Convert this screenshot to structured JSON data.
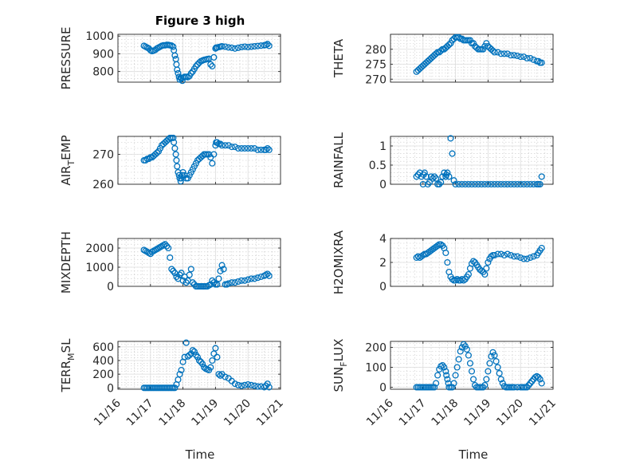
{
  "figure": {
    "title": "Figure 3 high"
  },
  "chart_data": [
    {
      "id": "pressure",
      "type": "scatter",
      "ylabel": "PRESSURE",
      "xlim": [
        16,
        21
      ],
      "ylim": [
        740,
        1010
      ],
      "yticks": [
        800,
        900,
        1000
      ],
      "x": [
        16.8,
        16.85,
        16.9,
        16.95,
        17.0,
        17.05,
        17.1,
        17.15,
        17.2,
        17.25,
        17.3,
        17.35,
        17.4,
        17.45,
        17.5,
        17.55,
        17.6,
        17.65,
        17.7,
        17.72,
        17.75,
        17.78,
        17.8,
        17.82,
        17.85,
        17.88,
        17.9,
        17.93,
        17.95,
        17.98,
        18.0,
        18.05,
        18.1,
        18.15,
        18.2,
        18.25,
        18.3,
        18.35,
        18.4,
        18.45,
        18.5,
        18.55,
        18.6,
        18.65,
        18.7,
        18.75,
        18.8,
        18.85,
        18.9,
        18.95,
        19.0,
        19.02,
        19.05,
        19.1,
        19.15,
        19.2,
        19.3,
        19.4,
        19.5,
        19.6,
        19.7,
        19.8,
        19.9,
        20.0,
        20.1,
        20.2,
        20.3,
        20.4,
        20.5,
        20.55,
        20.6,
        20.65
      ],
      "y": [
        945,
        940,
        935,
        930,
        920,
        915,
        918,
        922,
        930,
        935,
        940,
        945,
        948,
        948,
        950,
        950,
        948,
        946,
        940,
        920,
        890,
        870,
        840,
        810,
        790,
        770,
        755,
        765,
        760,
        748,
        765,
        770,
        770,
        768,
        775,
        790,
        800,
        815,
        830,
        840,
        850,
        858,
        862,
        866,
        868,
        870,
        872,
        840,
        830,
        880,
        930,
        935,
        935,
        938,
        940,
        942,
        940,
        936,
        934,
        930,
        934,
        938,
        940,
        938,
        940,
        942,
        944,
        946,
        948,
        950,
        955,
        945
      ]
    },
    {
      "id": "theta",
      "type": "scatter",
      "ylabel": "THETA",
      "xlim": [
        16,
        21
      ],
      "ylim": [
        269,
        285
      ],
      "yticks": [
        270,
        275,
        280
      ],
      "x": [
        16.8,
        16.85,
        16.9,
        16.95,
        17.0,
        17.05,
        17.1,
        17.15,
        17.2,
        17.25,
        17.3,
        17.35,
        17.4,
        17.45,
        17.5,
        17.55,
        17.6,
        17.65,
        17.7,
        17.75,
        17.8,
        17.85,
        17.9,
        17.95,
        18.0,
        18.05,
        18.1,
        18.15,
        18.2,
        18.25,
        18.3,
        18.35,
        18.4,
        18.45,
        18.5,
        18.55,
        18.6,
        18.65,
        18.7,
        18.75,
        18.8,
        18.85,
        18.9,
        18.95,
        19.0,
        19.05,
        19.1,
        19.15,
        19.2,
        19.3,
        19.4,
        19.5,
        19.6,
        19.7,
        19.8,
        19.9,
        20.0,
        20.1,
        20.2,
        20.3,
        20.4,
        20.5,
        20.55,
        20.6,
        20.65
      ],
      "y": [
        272.5,
        273,
        273.5,
        274,
        274.5,
        275,
        275.5,
        276,
        276.5,
        277,
        277.5,
        278,
        278.5,
        279,
        279,
        279.5,
        280,
        280,
        280.5,
        281,
        281.5,
        282,
        283,
        283.5,
        284,
        284,
        284,
        283.5,
        283.5,
        283,
        283,
        283,
        283,
        283,
        282,
        282,
        281,
        280.5,
        280,
        280,
        280,
        280,
        281,
        282,
        281,
        280.5,
        280,
        279.5,
        279,
        279,
        278.5,
        278.5,
        278.5,
        278,
        278,
        277.8,
        277.5,
        277.5,
        277,
        277,
        276.5,
        276,
        276,
        275.5,
        275.5
      ]
    },
    {
      "id": "air_temp",
      "type": "scatter",
      "ylabel": "AIR_TEMP",
      "xlim": [
        16,
        21
      ],
      "ylim": [
        260,
        276
      ],
      "yticks": [
        260,
        270
      ],
      "x": [
        16.8,
        16.85,
        16.9,
        16.95,
        17.0,
        17.05,
        17.1,
        17.15,
        17.2,
        17.25,
        17.3,
        17.35,
        17.4,
        17.45,
        17.5,
        17.55,
        17.6,
        17.65,
        17.7,
        17.72,
        17.75,
        17.78,
        17.8,
        17.82,
        17.85,
        17.88,
        17.9,
        17.93,
        17.95,
        17.98,
        18.0,
        18.05,
        18.1,
        18.15,
        18.2,
        18.25,
        18.3,
        18.35,
        18.4,
        18.45,
        18.5,
        18.55,
        18.6,
        18.65,
        18.7,
        18.75,
        18.8,
        18.85,
        18.9,
        18.95,
        19.0,
        19.02,
        19.05,
        19.1,
        19.15,
        19.2,
        19.3,
        19.4,
        19.5,
        19.6,
        19.7,
        19.8,
        19.9,
        20.0,
        20.1,
        20.2,
        20.3,
        20.4,
        20.5,
        20.55,
        20.6,
        20.65
      ],
      "y": [
        268,
        268,
        268.5,
        268.5,
        269,
        269,
        269.5,
        270,
        270.5,
        271,
        272,
        273,
        273.5,
        274,
        274.5,
        275,
        275.5,
        275.5,
        275.5,
        274,
        272,
        270,
        268,
        266,
        264,
        263,
        262,
        261,
        262,
        263,
        264,
        263,
        262,
        262,
        263,
        264,
        265,
        266,
        267,
        268,
        268.5,
        269,
        269.5,
        270,
        270,
        270,
        270,
        269,
        267,
        270,
        273,
        274,
        274,
        273.5,
        273.5,
        273,
        273,
        273,
        272.5,
        272.5,
        272,
        272,
        272,
        272,
        272,
        272,
        271.5,
        271.5,
        271.5,
        271.5,
        272,
        271.5
      ]
    },
    {
      "id": "rainfall",
      "type": "scatter",
      "ylabel": "RAINFALL",
      "xlim": [
        16,
        21
      ],
      "ylim": [
        0,
        1.25
      ],
      "yticks": [
        0,
        0.5,
        1
      ],
      "x": [
        16.8,
        16.85,
        16.9,
        16.95,
        17.0,
        17.02,
        17.05,
        17.1,
        17.15,
        17.2,
        17.25,
        17.3,
        17.35,
        17.4,
        17.45,
        17.5,
        17.55,
        17.6,
        17.65,
        17.7,
        17.72,
        17.75,
        17.8,
        17.85,
        17.9,
        17.95,
        18.0,
        18.1,
        18.2,
        18.3,
        18.4,
        18.5,
        18.6,
        18.7,
        18.8,
        18.9,
        19.0,
        19.1,
        19.2,
        19.3,
        19.4,
        19.5,
        19.6,
        19.7,
        19.8,
        19.9,
        20.0,
        20.1,
        20.2,
        20.3,
        20.4,
        20.5,
        20.55,
        20.6,
        20.65
      ],
      "y": [
        0.2,
        0.25,
        0.3,
        0.2,
        0,
        0.25,
        0.3,
        0.2,
        0,
        0.05,
        0.2,
        0.15,
        0.2,
        0.15,
        0,
        0,
        0.05,
        0.2,
        0.3,
        0.2,
        0.25,
        0.3,
        0.2,
        1.2,
        0.8,
        0.1,
        0,
        0,
        0,
        0,
        0,
        0,
        0,
        0,
        0,
        0,
        0,
        0,
        0,
        0,
        0,
        0,
        0,
        0,
        0,
        0,
        0,
        0,
        0,
        0,
        0,
        0,
        0,
        0,
        0.2
      ]
    },
    {
      "id": "mixdepth",
      "type": "scatter",
      "ylabel": "MIXDEPTH",
      "xlim": [
        16,
        21
      ],
      "ylim": [
        0,
        2500
      ],
      "yticks": [
        0,
        1000,
        2000
      ],
      "x": [
        16.8,
        16.85,
        16.9,
        16.95,
        17.0,
        17.05,
        17.1,
        17.15,
        17.2,
        17.25,
        17.3,
        17.35,
        17.4,
        17.45,
        17.5,
        17.55,
        17.6,
        17.65,
        17.7,
        17.75,
        17.8,
        17.85,
        17.9,
        17.95,
        18.0,
        18.05,
        18.1,
        18.15,
        18.2,
        18.25,
        18.3,
        18.35,
        18.4,
        18.45,
        18.5,
        18.55,
        18.6,
        18.65,
        18.7,
        18.75,
        18.8,
        18.85,
        18.9,
        18.95,
        19.0,
        19.05,
        19.1,
        19.15,
        19.2,
        19.25,
        19.3,
        19.35,
        19.4,
        19.5,
        19.6,
        19.7,
        19.8,
        19.9,
        20.0,
        20.1,
        20.2,
        20.3,
        20.4,
        20.5,
        20.55,
        20.6,
        20.65
      ],
      "y": [
        1900,
        1850,
        1800,
        1750,
        1700,
        1800,
        1850,
        1900,
        1950,
        2000,
        2050,
        2100,
        2150,
        2200,
        2100,
        2000,
        1500,
        900,
        800,
        700,
        500,
        400,
        600,
        700,
        300,
        500,
        200,
        300,
        600,
        900,
        200,
        100,
        0,
        0,
        0,
        0,
        0,
        0,
        0,
        0,
        50,
        100,
        300,
        200,
        100,
        100,
        400,
        800,
        1100,
        900,
        100,
        100,
        150,
        200,
        200,
        250,
        300,
        300,
        350,
        400,
        400,
        450,
        500,
        550,
        600,
        650,
        550
      ]
    },
    {
      "id": "h2omixra",
      "type": "scatter",
      "ylabel": "H2OMIXRA",
      "xlim": [
        16,
        21
      ],
      "ylim": [
        0,
        4
      ],
      "yticks": [
        0,
        2,
        4
      ],
      "x": [
        16.8,
        16.85,
        16.9,
        16.95,
        17.0,
        17.05,
        17.1,
        17.15,
        17.2,
        17.25,
        17.3,
        17.35,
        17.4,
        17.45,
        17.5,
        17.55,
        17.6,
        17.65,
        17.7,
        17.75,
        17.8,
        17.85,
        17.9,
        17.95,
        18.0,
        18.05,
        18.1,
        18.15,
        18.2,
        18.25,
        18.3,
        18.35,
        18.4,
        18.45,
        18.5,
        18.55,
        18.6,
        18.65,
        18.7,
        18.75,
        18.8,
        18.85,
        18.9,
        18.95,
        19.0,
        19.05,
        19.1,
        19.15,
        19.2,
        19.3,
        19.4,
        19.5,
        19.6,
        19.7,
        19.8,
        19.9,
        20.0,
        20.1,
        20.2,
        20.3,
        20.4,
        20.5,
        20.55,
        20.6,
        20.65
      ],
      "y": [
        2.4,
        2.5,
        2.4,
        2.5,
        2.6,
        2.7,
        2.7,
        2.8,
        2.9,
        3.0,
        3.1,
        3.2,
        3.3,
        3.4,
        3.5,
        3.5,
        3.4,
        3.2,
        2.8,
        2.0,
        1.2,
        0.8,
        0.6,
        0.5,
        0.5,
        0.6,
        0.5,
        0.5,
        0.6,
        0.5,
        0.6,
        0.8,
        1.0,
        1.5,
        1.9,
        2.1,
        2.0,
        1.8,
        1.6,
        1.4,
        1.3,
        1.2,
        1.0,
        1.5,
        2.0,
        2.3,
        2.5,
        2.6,
        2.6,
        2.7,
        2.7,
        2.6,
        2.7,
        2.6,
        2.5,
        2.5,
        2.4,
        2.3,
        2.3,
        2.4,
        2.5,
        2.6,
        2.8,
        3.0,
        3.2
      ]
    },
    {
      "id": "terr_msl",
      "type": "scatter",
      "ylabel": "TERR_MSL",
      "xlim": [
        16,
        21
      ],
      "ylim": [
        -20,
        680
      ],
      "yticks": [
        0,
        200,
        400,
        600
      ],
      "x": [
        16.8,
        16.85,
        16.9,
        16.95,
        17.0,
        17.05,
        17.1,
        17.15,
        17.2,
        17.25,
        17.3,
        17.35,
        17.4,
        17.45,
        17.5,
        17.55,
        17.6,
        17.65,
        17.7,
        17.75,
        17.8,
        17.85,
        17.9,
        17.95,
        18.0,
        18.05,
        18.1,
        18.15,
        18.2,
        18.25,
        18.3,
        18.35,
        18.4,
        18.45,
        18.5,
        18.55,
        18.6,
        18.65,
        18.7,
        18.75,
        18.8,
        18.85,
        18.9,
        18.95,
        19.0,
        19.05,
        19.1,
        19.15,
        19.2,
        19.3,
        19.4,
        19.5,
        19.6,
        19.7,
        19.8,
        19.9,
        20.0,
        20.1,
        20.2,
        20.3,
        20.4,
        20.5,
        20.55,
        20.6,
        20.65
      ],
      "y": [
        0,
        0,
        0,
        0,
        0,
        0,
        0,
        0,
        0,
        0,
        0,
        0,
        0,
        0,
        0,
        0,
        0,
        0,
        0,
        0,
        50,
        120,
        200,
        260,
        380,
        450,
        660,
        460,
        480,
        500,
        550,
        530,
        480,
        450,
        400,
        380,
        350,
        300,
        280,
        270,
        260,
        300,
        400,
        500,
        580,
        450,
        200,
        180,
        200,
        160,
        140,
        100,
        60,
        40,
        30,
        40,
        50,
        40,
        30,
        20,
        20,
        10,
        30,
        60,
        10
      ]
    },
    {
      "id": "sun_flux",
      "type": "scatter",
      "ylabel": "SUN_FLUX",
      "xlim": [
        16,
        21
      ],
      "ylim": [
        -10,
        230
      ],
      "yticks": [
        0,
        100,
        200
      ],
      "x": [
        16.8,
        16.85,
        16.9,
        16.95,
        17.0,
        17.05,
        17.1,
        17.15,
        17.2,
        17.25,
        17.3,
        17.35,
        17.4,
        17.45,
        17.5,
        17.55,
        17.6,
        17.65,
        17.7,
        17.72,
        17.75,
        17.78,
        17.8,
        17.85,
        17.9,
        17.95,
        18.0,
        18.05,
        18.1,
        18.15,
        18.2,
        18.25,
        18.3,
        18.35,
        18.4,
        18.45,
        18.5,
        18.55,
        18.6,
        18.65,
        18.7,
        18.75,
        18.8,
        18.85,
        18.9,
        18.95,
        19.0,
        19.05,
        19.1,
        19.15,
        19.2,
        19.25,
        19.3,
        19.35,
        19.4,
        19.45,
        19.5,
        19.55,
        19.6,
        19.65,
        19.7,
        19.75,
        19.8,
        19.9,
        20.0,
        20.05,
        20.1,
        20.15,
        20.2,
        20.25,
        20.3,
        20.35,
        20.4,
        20.45,
        20.5,
        20.55,
        20.6,
        20.65
      ],
      "y": [
        0,
        0,
        0,
        0,
        0,
        0,
        0,
        0,
        0,
        0,
        0,
        0,
        20,
        60,
        90,
        105,
        110,
        100,
        80,
        60,
        40,
        20,
        0,
        0,
        0,
        20,
        60,
        100,
        140,
        180,
        200,
        215,
        205,
        190,
        160,
        120,
        80,
        40,
        10,
        0,
        0,
        0,
        0,
        0,
        10,
        40,
        80,
        120,
        155,
        175,
        160,
        130,
        100,
        70,
        40,
        20,
        5,
        0,
        0,
        0,
        0,
        0,
        0,
        0,
        0,
        0,
        0,
        0,
        0,
        10,
        20,
        30,
        40,
        50,
        55,
        50,
        40,
        20
      ]
    }
  ],
  "xaxis": {
    "label": "Time",
    "ticks": [
      16,
      17,
      18,
      19,
      20,
      21
    ],
    "tick_labels": [
      "11/16",
      "11/17",
      "11/18",
      "11/19",
      "11/20",
      "11/21"
    ]
  }
}
